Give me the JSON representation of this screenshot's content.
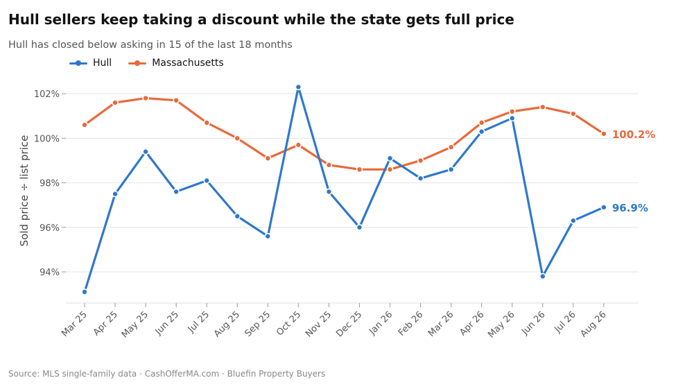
{
  "chart_data": {
    "type": "line",
    "title": "Hull sellers keep taking a discount while the state gets full price",
    "subtitle": "Hull has closed below asking in 15 of the last 18 months",
    "ylabel": "Sold price ÷ list price",
    "xlabel": "",
    "source": "Source: MLS single-family data  ·  CashOfferMA.com  ·  Bluefin Property Buyers",
    "categories": [
      "Mar 25",
      "Apr 25",
      "May 25",
      "Jun 25",
      "Jul 25",
      "Aug 25",
      "Sep 25",
      "Oct 25",
      "Nov 25",
      "Dec 25",
      "Jan 26",
      "Feb 26",
      "Mar 26",
      "Apr 26",
      "May 26",
      "Jun 26",
      "Jul 26",
      "Aug 26"
    ],
    "ylim": [
      92.6,
      103.0
    ],
    "yticks": [
      94,
      96,
      98,
      100,
      102
    ],
    "ytick_labels": [
      "94%",
      "96%",
      "98%",
      "100%",
      "102%"
    ],
    "grid": true,
    "legend_position": "top-left",
    "series": [
      {
        "name": "Hull",
        "color": "#2e78cc",
        "values": [
          93.1,
          97.5,
          99.4,
          97.6,
          98.1,
          96.5,
          95.6,
          102.3,
          97.6,
          96.0,
          99.1,
          98.2,
          98.6,
          100.3,
          100.9,
          93.8,
          96.3,
          96.9
        ],
        "end_label": "96.9%"
      },
      {
        "name": "Massachusetts",
        "color": "#e8693a",
        "values": [
          100.6,
          101.6,
          101.8,
          101.7,
          100.7,
          100.0,
          99.1,
          99.7,
          98.8,
          98.6,
          98.6,
          99.0,
          99.6,
          100.7,
          101.2,
          101.4,
          101.1,
          100.2
        ],
        "end_label": "100.2%"
      }
    ]
  }
}
